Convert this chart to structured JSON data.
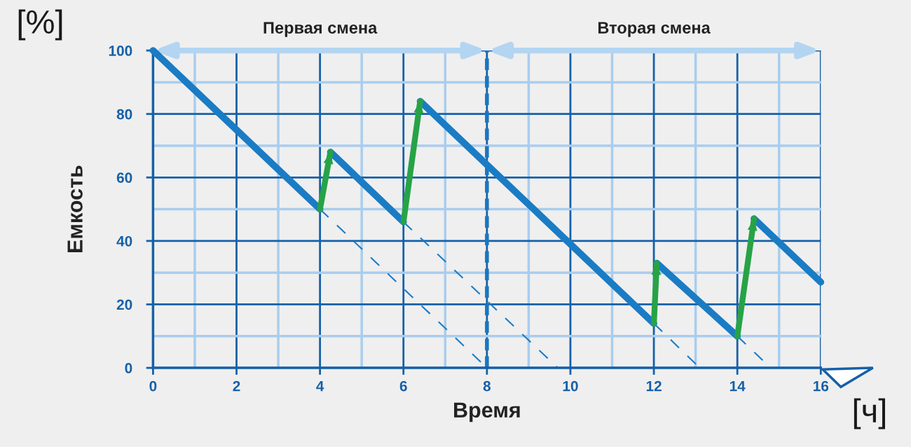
{
  "chart_data": {
    "type": "line",
    "xlabel": "Время",
    "ylabel": "Емкость",
    "annotations": [
      "[%]",
      "[ч]",
      "Первая смена",
      "Вторая смена"
    ],
    "xlim": [
      0,
      16
    ],
    "ylim": [
      0,
      100
    ],
    "xticks": [
      0,
      {
        "value": 1,
        "label": null
      },
      2,
      {
        "value": 3,
        "label": null
      },
      4,
      {
        "value": 5,
        "label": null
      },
      6,
      {
        "value": 7,
        "label": null
      },
      8,
      {
        "value": 9,
        "label": null
      },
      10,
      {
        "value": 11,
        "label": null
      },
      12,
      {
        "value": 13,
        "label": null
      },
      14,
      {
        "value": 15,
        "label": null
      },
      16
    ],
    "yticks": [
      0,
      {
        "value": 10,
        "label": null
      },
      20,
      {
        "value": 30,
        "label": null
      },
      40,
      {
        "value": 50,
        "label": null
      },
      60,
      {
        "value": 70,
        "label": null
      },
      80,
      {
        "value": 90,
        "label": null
      },
      100
    ],
    "grid": true,
    "ref_lines": [
      {
        "axis": "x",
        "value": 8,
        "label": null,
        "color": "#1b76bf",
        "line_style": "dashed"
      }
    ],
    "series": [
      {
        "color": "#1a7cc4",
        "x": [
          0,
          4
        ],
        "values": [
          100,
          50
        ]
      },
      {
        "color": "#1a7cc4",
        "x": [
          4.25,
          6
        ],
        "values": [
          68,
          46
        ]
      },
      {
        "color": "#1a7cc4",
        "x": [
          6.4,
          12
        ],
        "values": [
          84,
          14
        ]
      },
      {
        "color": "#1a7cc4",
        "x": [
          12.07,
          14
        ],
        "values": [
          33,
          10
        ]
      },
      {
        "color": "#1a7cc4",
        "x": [
          14.4,
          16
        ],
        "values": [
          47,
          27
        ]
      },
      {
        "color": "#27a347",
        "x": [
          4,
          4.25
        ],
        "values": [
          50,
          68
        ]
      },
      {
        "color": "#27a347",
        "x": [
          6,
          6.4
        ],
        "values": [
          46,
          84
        ]
      },
      {
        "color": "#27a347",
        "x": [
          12,
          12.07
        ],
        "values": [
          14,
          33
        ]
      },
      {
        "color": "#27a347",
        "x": [
          14,
          14.4
        ],
        "values": [
          10,
          47
        ]
      },
      {
        "color": "#1a7cc4",
        "line_style": "dashed",
        "x": [
          4,
          8
        ],
        "values": [
          50,
          0
        ]
      },
      {
        "color": "#1a7cc4",
        "line_style": "dashed",
        "x": [
          6,
          9.7
        ],
        "values": [
          46,
          0
        ]
      },
      {
        "color": "#1a7cc4",
        "line_style": "dashed",
        "x": [
          12,
          13.1
        ],
        "values": [
          14,
          0
        ]
      },
      {
        "color": "#1a7cc4",
        "line_style": "dashed",
        "x": [
          14,
          14.8
        ],
        "values": [
          10,
          0
        ]
      }
    ]
  }
}
